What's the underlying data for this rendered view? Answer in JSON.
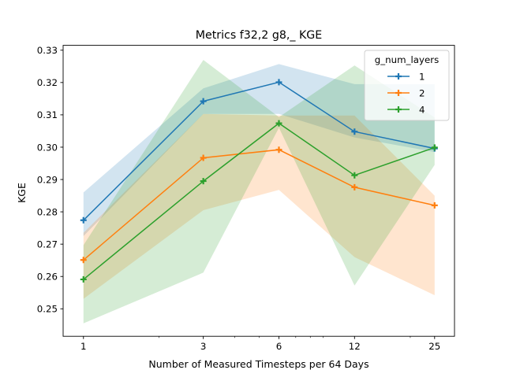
{
  "chart_data": {
    "type": "line",
    "title": "Metrics f32,2 g8,_ KGE",
    "xlabel": "Number of Measured Timesteps per 64 Days",
    "ylabel": "KGE",
    "x_scale": "log",
    "x": [
      1,
      3,
      6,
      12,
      25
    ],
    "x_tick_labels": [
      "1",
      "3",
      "6",
      "12",
      "25"
    ],
    "xlim": [
      0.83,
      30
    ],
    "ylim": [
      0.2415,
      0.3315
    ],
    "y_ticks": [
      0.25,
      0.26,
      0.27,
      0.28,
      0.29,
      0.3,
      0.31,
      0.32,
      0.33
    ],
    "y_tick_labels": [
      "0.25",
      "0.26",
      "0.27",
      "0.28",
      "0.29",
      "0.30",
      "0.31",
      "0.32",
      "0.33"
    ],
    "legend": {
      "title": "g_num_layers",
      "position": "top-right"
    },
    "series": [
      {
        "name": "1",
        "color": "#1f77b4",
        "values": [
          0.2774,
          0.3142,
          0.3201,
          0.3048,
          0.2996
        ],
        "band_low": [
          0.2725,
          0.3103,
          0.3103,
          0.303,
          0.2985
        ],
        "band_high": [
          0.286,
          0.3182,
          0.3257,
          0.3195,
          0.3195
        ]
      },
      {
        "name": "2",
        "color": "#ff7f0e",
        "values": [
          0.2651,
          0.2967,
          0.2992,
          0.2876,
          0.282
        ],
        "band_low": [
          0.2531,
          0.2805,
          0.2868,
          0.266,
          0.2542
        ],
        "band_high": [
          0.2735,
          0.3103,
          0.3098,
          0.3098,
          0.285
        ]
      },
      {
        "name": "4",
        "color": "#2ca02c",
        "values": [
          0.2591,
          0.2895,
          0.3074,
          0.2913,
          0.2999
        ],
        "band_low": [
          0.2455,
          0.2612,
          0.306,
          0.2572,
          0.2945
        ],
        "band_high": [
          0.2697,
          0.327,
          0.3093,
          0.3253,
          0.3092
        ]
      }
    ]
  }
}
